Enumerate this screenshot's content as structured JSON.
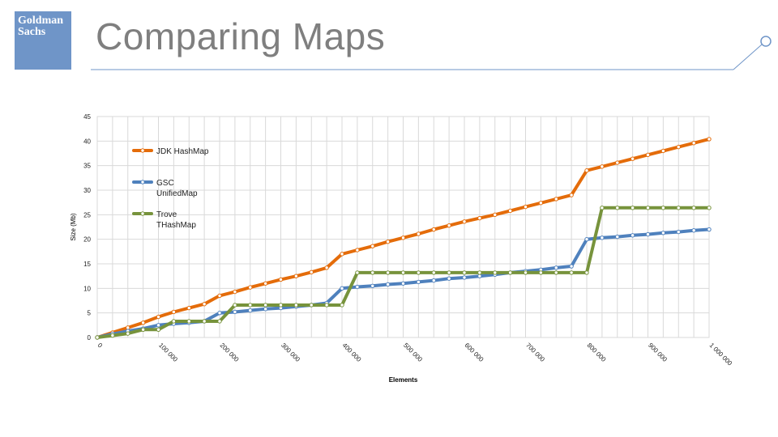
{
  "slide": {
    "title": "Comparing Maps",
    "logo": {
      "line1": "Goldman",
      "line2": "Sachs",
      "color": "#6f95c8"
    }
  },
  "colors": {
    "jdk": "#e46c0a",
    "gsc": "#4f81bd",
    "trove": "#77933c",
    "grid": "#d9d9d9",
    "title": "#7f7f7f",
    "decor_line": "#6f95c8"
  },
  "chart_data": {
    "type": "line",
    "xlabel": "Elements",
    "ylabel": "Size (Mb)",
    "xlim": [
      0,
      1000000
    ],
    "ylim": [
      0,
      45
    ],
    "y_ticks": [
      "0",
      "5",
      "10",
      "15",
      "20",
      "25",
      "30",
      "35",
      "40",
      "45"
    ],
    "x_ticks": [
      "0",
      "100 000",
      "200 000",
      "300 000",
      "400 000",
      "500 000",
      "600 000",
      "700 000",
      "800 000",
      "900 000",
      "1 000 000"
    ],
    "legend_position": "top-left",
    "grid": true,
    "x": [
      0,
      25000,
      50000,
      75000,
      100000,
      125000,
      150000,
      175000,
      200000,
      225000,
      250000,
      275000,
      300000,
      325000,
      350000,
      375000,
      400000,
      425000,
      450000,
      475000,
      500000,
      525000,
      550000,
      575000,
      600000,
      625000,
      650000,
      675000,
      700000,
      725000,
      750000,
      775000,
      800000,
      825000,
      850000,
      875000,
      900000,
      925000,
      950000,
      975000,
      1000000
    ],
    "series": [
      {
        "name": "JDK HashMap",
        "color": "#e46c0a",
        "values": [
          0,
          1.0,
          2.0,
          3.0,
          4.2,
          5.2,
          6.0,
          6.8,
          8.5,
          9.3,
          10.2,
          11.0,
          11.8,
          12.5,
          13.3,
          14.2,
          17.0,
          17.8,
          18.6,
          19.5,
          20.3,
          21.1,
          22.0,
          22.8,
          23.6,
          24.3,
          25.0,
          25.8,
          26.6,
          27.4,
          28.2,
          29.0,
          34.0,
          34.8,
          35.6,
          36.4,
          37.2,
          38.0,
          38.8,
          39.6,
          40.4
        ]
      },
      {
        "name": "GSC UnifiedMap",
        "color": "#4f81bd",
        "values": [
          0,
          0.7,
          1.3,
          1.8,
          2.5,
          2.8,
          3.0,
          3.3,
          5.0,
          5.2,
          5.5,
          5.8,
          6.0,
          6.3,
          6.6,
          7.0,
          10.0,
          10.3,
          10.5,
          10.8,
          11.0,
          11.3,
          11.6,
          12.0,
          12.2,
          12.5,
          12.8,
          13.2,
          13.5,
          13.8,
          14.2,
          14.5,
          20.0,
          20.3,
          20.5,
          20.8,
          21.0,
          21.3,
          21.5,
          21.8,
          22.0
        ]
      },
      {
        "name": "Trove THashMap",
        "color": "#77933c",
        "values": [
          0,
          0.4,
          0.8,
          1.6,
          1.6,
          3.3,
          3.3,
          3.3,
          3.3,
          6.6,
          6.6,
          6.6,
          6.6,
          6.6,
          6.6,
          6.6,
          6.6,
          13.2,
          13.2,
          13.2,
          13.2,
          13.2,
          13.2,
          13.2,
          13.2,
          13.2,
          13.2,
          13.2,
          13.2,
          13.2,
          13.2,
          13.2,
          13.2,
          26.4,
          26.4,
          26.4,
          26.4,
          26.4,
          26.4,
          26.4,
          26.4
        ]
      }
    ],
    "legend": [
      {
        "line1": "JDK HashMap",
        "line2": ""
      },
      {
        "line1": "GSC",
        "line2": "UnifiedMap"
      },
      {
        "line1": "Trove",
        "line2": "THashMap"
      }
    ]
  }
}
